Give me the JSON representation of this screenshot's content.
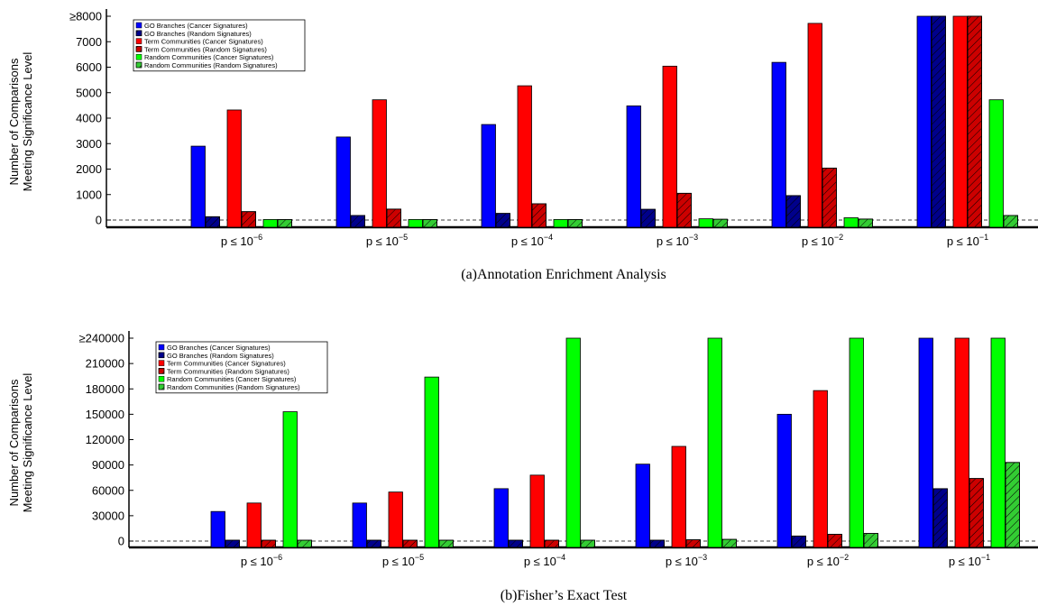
{
  "chart_data": [
    {
      "type": "bar",
      "caption": "(a)Annotation Enrichment Analysis",
      "ylabel_line1": "Number of Comparisons",
      "ylabel_line2": "Meeting Significance Level",
      "yticks": [
        "0",
        "1000",
        "2000",
        "3000",
        "4000",
        "5000",
        "6000",
        "7000",
        "≥8000"
      ],
      "ylim": [
        -300,
        8000
      ],
      "categories": [
        {
          "prefix": "p ≤ 10",
          "exp": "−6"
        },
        {
          "prefix": "p ≤ 10",
          "exp": "−5"
        },
        {
          "prefix": "p ≤ 10",
          "exp": "−4"
        },
        {
          "prefix": "p ≤ 10",
          "exp": "−3"
        },
        {
          "prefix": "p ≤ 10",
          "exp": "−2"
        },
        {
          "prefix": "p ≤ 10",
          "exp": "−1"
        }
      ],
      "legend": [
        "GO Branches (Cancer Signatures)",
        "GO Branches (Random Signatures)",
        "Term Communities (Cancer Signatures)",
        "Term Communities (Random Signatures)",
        "Random Communities (Cancer Signatures)",
        "Random Communities (Random Signatures)"
      ],
      "legend_placement": "top-left",
      "series": [
        {
          "values": [
            2900,
            130,
            4320,
            330,
            20,
            20
          ]
        },
        {
          "values": [
            3260,
            180,
            4720,
            430,
            20,
            20
          ]
        },
        {
          "values": [
            3750,
            260,
            5270,
            640,
            20,
            20
          ]
        },
        {
          "values": [
            4480,
            420,
            6040,
            1050,
            50,
            30
          ]
        },
        {
          "values": [
            6190,
            960,
            7720,
            2040,
            90,
            40
          ]
        },
        {
          "values": [
            8000,
            8000,
            8000,
            8000,
            4720,
            180
          ]
        }
      ]
    },
    {
      "type": "bar",
      "caption": "(b)Fisher’s Exact Test",
      "ylabel_line1": "Number of Comparisons",
      "ylabel_line2": "Meeting Significance Level",
      "yticks": [
        "0",
        "30000",
        "60000",
        "90000",
        "120000",
        "150000",
        "180000",
        "210000",
        "≥240000"
      ],
      "ylim": [
        -6000,
        240000
      ],
      "categories": [
        {
          "prefix": "p ≤ 10",
          "exp": "−6"
        },
        {
          "prefix": "p ≤ 10",
          "exp": "−5"
        },
        {
          "prefix": "p ≤ 10",
          "exp": "−4"
        },
        {
          "prefix": "p ≤ 10",
          "exp": "−3"
        },
        {
          "prefix": "p ≤ 10",
          "exp": "−2"
        },
        {
          "prefix": "p ≤ 10",
          "exp": "−1"
        }
      ],
      "legend": [
        "GO Branches (Cancer Signatures)",
        "GO Branches (Random Signatures)",
        "Term Communities (Cancer Signatures)",
        "Term Communities (Random Signatures)",
        "Random Communities (Cancer Signatures)",
        "Random Communities (Random Signatures)"
      ],
      "legend_placement": "top-left",
      "series": [
        {
          "values": [
            35000,
            1000,
            45000,
            1000,
            153000,
            1000
          ]
        },
        {
          "values": [
            45000,
            1000,
            58000,
            1000,
            194000,
            1000
          ]
        },
        {
          "values": [
            62000,
            1000,
            78000,
            1000,
            240000,
            1000
          ]
        },
        {
          "values": [
            91000,
            1000,
            112000,
            1500,
            240000,
            2000
          ]
        },
        {
          "values": [
            150000,
            6000,
            178000,
            8000,
            240000,
            9000
          ]
        },
        {
          "values": [
            240000,
            62000,
            240000,
            74000,
            240000,
            93000
          ]
        }
      ]
    }
  ],
  "colors": {
    "blue": "#0000ff",
    "navy": "#00008b",
    "red": "#ff0000",
    "darkred": "#cc0000",
    "green": "#00ff00",
    "lightgreen": "#33cc33"
  }
}
